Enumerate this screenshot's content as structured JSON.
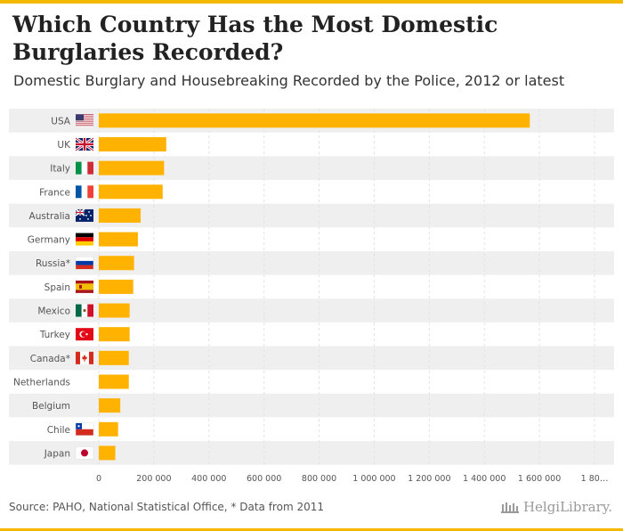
{
  "header": {
    "title": "Which Country Has the Most Domestic Burglaries Recorded?",
    "subtitle": "Domestic Burglary and Housebreaking Recorded by the Police, 2012 or latest"
  },
  "footer": {
    "source": "Source: PAHO, National Statistical Office, * Data from 2011",
    "brand": "HelgiLibrary."
  },
  "colors": {
    "bar": "#ffb300",
    "stripe": "#efefef",
    "accent": "#f5b800"
  },
  "chart_data": {
    "type": "bar",
    "orientation": "horizontal",
    "title": "",
    "xlabel": "",
    "ylabel": "",
    "categories": [
      "USA",
      "UK",
      "Italy",
      "France",
      "Australia",
      "Germany",
      "Russia*",
      "Spain",
      "Mexico",
      "Turkey",
      "Canada*",
      "Netherlands",
      "Belgium",
      "Chile",
      "Japan"
    ],
    "flags": [
      "us-flag-icon",
      "uk-flag-icon",
      "italy-flag-icon",
      "france-flag-icon",
      "australia-flag-icon",
      "germany-flag-icon",
      "russia-flag-icon",
      "spain-flag-icon",
      "mexico-flag-icon",
      "turkey-flag-icon",
      "canada-flag-icon",
      "",
      "",
      "chile-flag-icon",
      "japan-flag-icon"
    ],
    "values": [
      1565000,
      245000,
      237000,
      232000,
      152000,
      142000,
      128000,
      125000,
      112000,
      112000,
      109000,
      109000,
      78000,
      70000,
      60000
    ],
    "xlim": [
      0,
      1800000
    ],
    "xticks": [
      0,
      200000,
      400000,
      600000,
      800000,
      1000000,
      1200000,
      1400000,
      1600000,
      1800000
    ],
    "xtick_labels": [
      "0",
      "200 000",
      "400 000",
      "600 000",
      "800 000",
      "1 000 000",
      "1 200 000",
      "1 400 000",
      "1 600 000",
      "1 80…"
    ],
    "grid": true
  }
}
